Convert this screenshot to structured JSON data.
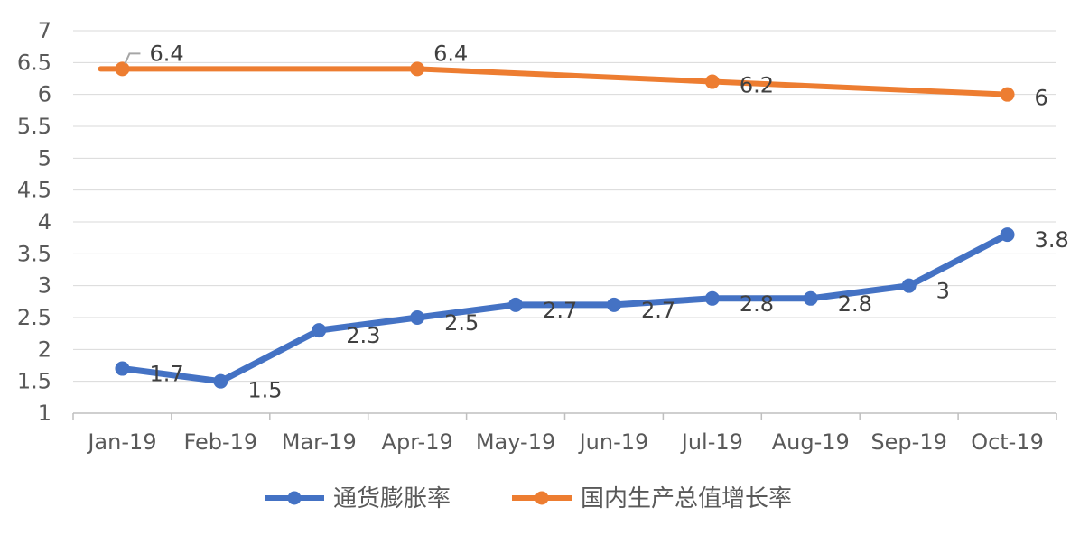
{
  "chart_data": {
    "type": "line",
    "categories": [
      "Jan-19",
      "Feb-19",
      "Mar-19",
      "Apr-19",
      "May-19",
      "Jun-19",
      "Jul-19",
      "Aug-19",
      "Sep-19",
      "Oct-19"
    ],
    "ylim": [
      1,
      7
    ],
    "yticks": [
      "1",
      "1.5",
      "2",
      "2.5",
      "3",
      "3.5",
      "4",
      "4.5",
      "5",
      "5.5",
      "6",
      "6.5",
      "7"
    ],
    "grid": true,
    "legend_position": "bottom",
    "series": [
      {
        "name": "通货膨胀率",
        "color": "#4472C4",
        "values": [
          1.7,
          1.5,
          2.3,
          2.5,
          2.7,
          2.7,
          2.8,
          2.8,
          3.0,
          3.8
        ],
        "labels": [
          "1.7",
          "1.5",
          "2.3",
          "2.5",
          "2.7",
          "2.7",
          "2.8",
          "2.8",
          "3",
          "3.8"
        ],
        "markers": [
          true,
          true,
          true,
          true,
          true,
          true,
          true,
          true,
          true,
          true
        ]
      },
      {
        "name": "国内生产总值增长率",
        "color": "#ED7D31",
        "values": [
          6.4,
          6.4,
          6.4,
          6.4,
          null,
          null,
          6.2,
          null,
          null,
          6.0
        ],
        "labels": [
          "6.4",
          null,
          null,
          "6.4",
          null,
          null,
          "6.2",
          null,
          null,
          "6"
        ],
        "markers": [
          true,
          false,
          false,
          true,
          false,
          false,
          true,
          false,
          false,
          true
        ]
      }
    ]
  }
}
